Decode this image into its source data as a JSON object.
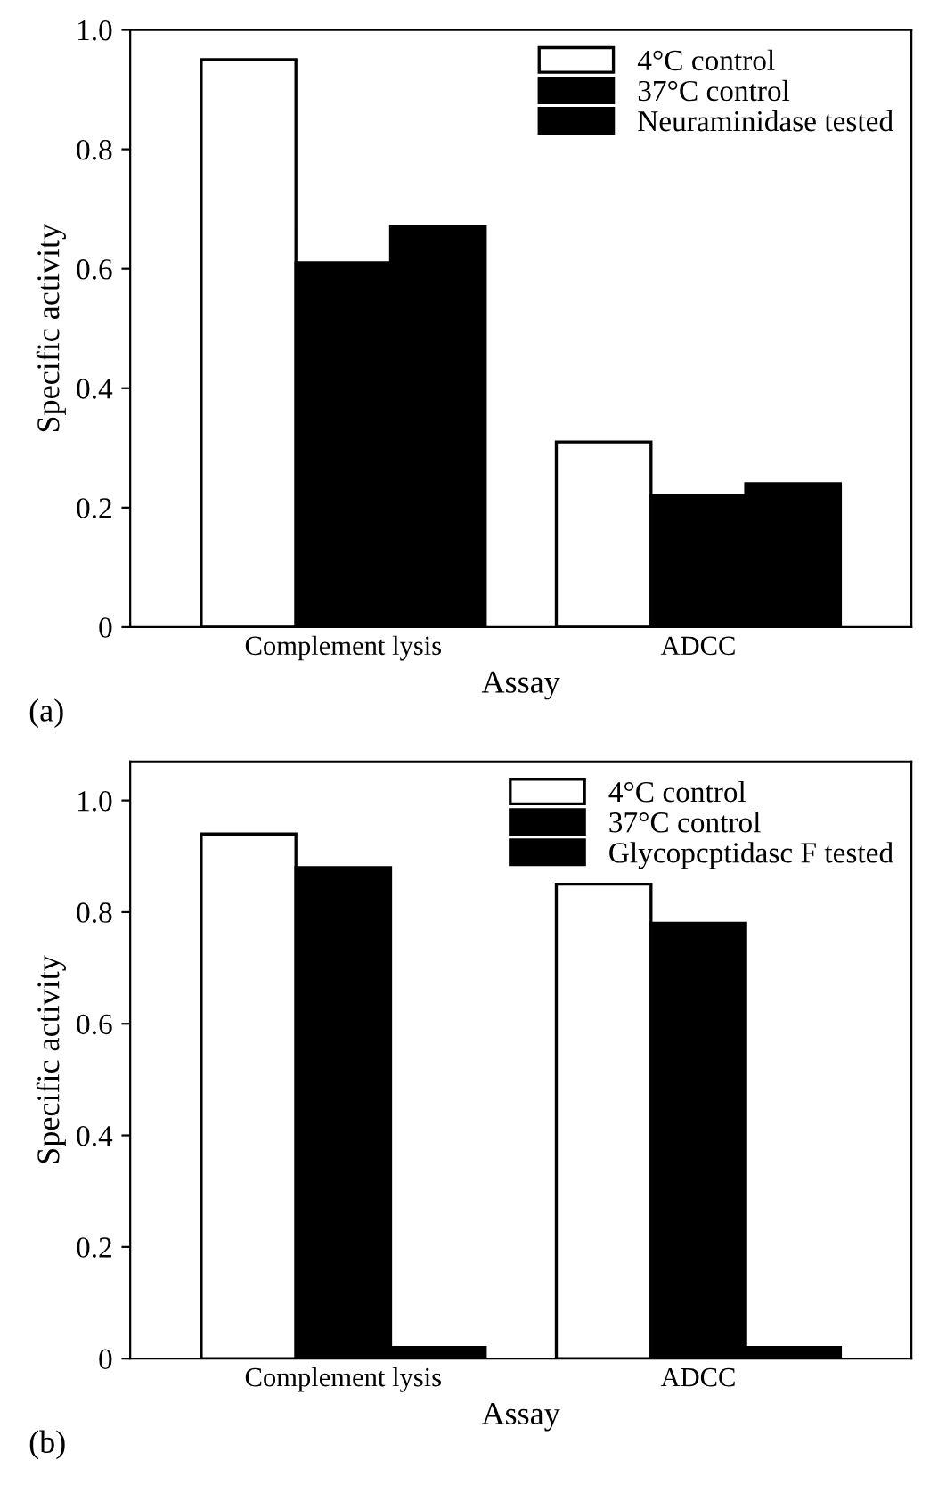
{
  "chart_data": [
    {
      "type": "bar",
      "categories": [
        "Complement lysis",
        "ADCC"
      ],
      "xlabel": "Assay",
      "ylabel": "Specific activity",
      "ylim": [
        0,
        1.0
      ],
      "yticks": [
        0,
        0.2,
        0.4,
        0.6,
        0.8,
        {
          "value": 1,
          "label": "1.0"
        }
      ],
      "legend": "top right",
      "grid": false,
      "annotations": [
        "(a)"
      ],
      "series": [
        {
          "name": "4°C control",
          "color": "#ffffff",
          "values": [
            0.95,
            0.31
          ]
        },
        {
          "name": "37°C control",
          "color": "#000000",
          "values": [
            0.61,
            0.22
          ]
        },
        {
          "name": "Neuraminidase tested",
          "color": "#000000",
          "values": [
            0.67,
            0.24
          ]
        }
      ]
    },
    {
      "type": "bar",
      "categories": [
        "Complement lysis",
        "ADCC"
      ],
      "xlabel": "Assay",
      "ylabel": "Specific activity",
      "ylim": [
        0,
        1.07
      ],
      "yticks": [
        0,
        0.2,
        0.4,
        0.6,
        0.8,
        {
          "value": 1,
          "label": "1.0"
        }
      ],
      "legend": "top right",
      "grid": false,
      "annotations": [
        "(b)"
      ],
      "series": [
        {
          "name": "4°C control",
          "color": "#ffffff",
          "values": [
            0.94,
            0.85
          ]
        },
        {
          "name": "37°C control",
          "color": "#000000",
          "values": [
            0.88,
            0.78
          ]
        },
        {
          "name": "Glycopcptidasc F tested",
          "color": "#000000",
          "values": [
            0.02,
            0.02
          ]
        }
      ]
    }
  ]
}
